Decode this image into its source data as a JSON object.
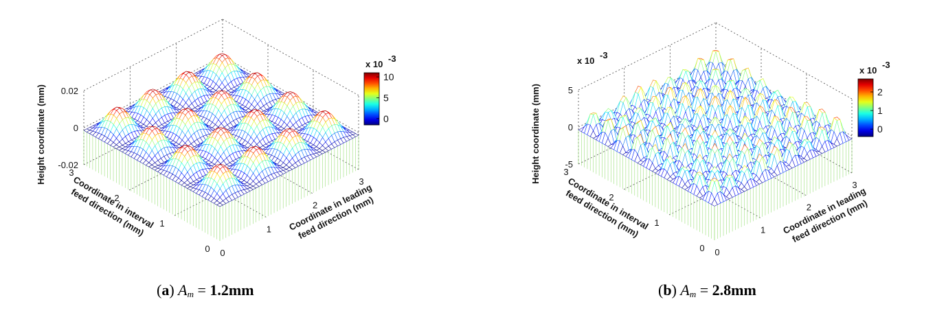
{
  "chart_data": [
    {
      "type": "surface",
      "panel_label": "a",
      "caption_var": "A",
      "caption_sub": "m",
      "caption_value": "1.2mm",
      "zlabel": "Height coordinate (mm)",
      "xlabel_lines": [
        "Coordinate in leading",
        "feed direction (mm)"
      ],
      "ylabel_lines": [
        "Coordinate in interval",
        "feed direction (mm)"
      ],
      "xticks": [
        "0",
        "1",
        "2",
        "3"
      ],
      "yticks": [
        "0",
        "1",
        "2",
        "3"
      ],
      "zticks": [
        "-0.02",
        "0",
        "0.02"
      ],
      "xlim": [
        0,
        3
      ],
      "ylim": [
        0,
        3
      ],
      "zlim": [
        -0.02,
        0.02
      ],
      "z_multiplier": "",
      "colorbar": {
        "multiplier": "x 10",
        "exponent": "-3",
        "ticks": [
          "10",
          "5",
          "0"
        ],
        "range": [
          -0.0015,
          0.011
        ]
      },
      "surface": {
        "peaks_x": 4,
        "peaks_y": 4,
        "amplitude_mm": 0.011,
        "min_mm": -0.0015
      }
    },
    {
      "type": "surface",
      "panel_label": "b",
      "caption_var": "A",
      "caption_sub": "m",
      "caption_value": "2.8mm",
      "zlabel": "Height coordinate (mm)",
      "xlabel_lines": [
        "Coordinate in leading",
        "feed direction (mm)"
      ],
      "ylabel_lines": [
        "Coordinate in interval",
        "feed direction (mm)"
      ],
      "xticks": [
        "0",
        "1",
        "2",
        "3"
      ],
      "yticks": [
        "0",
        "1",
        "2",
        "3"
      ],
      "zticks": [
        "-5",
        "0",
        "5"
      ],
      "xlim": [
        0,
        3
      ],
      "ylim": [
        0,
        3
      ],
      "zlim": [
        -0.005,
        0.005
      ],
      "z_multiplier": "x 10",
      "z_multiplier_exp": "-3",
      "colorbar": {
        "multiplier": "x 10",
        "exponent": "-3",
        "ticks": [
          "2",
          "1",
          "0"
        ],
        "range": [
          -0.0004,
          0.0027
        ]
      },
      "surface": {
        "peaks_x": 9,
        "peaks_y": 9,
        "amplitude_mm": 0.0027,
        "min_mm": -0.0004
      }
    }
  ]
}
